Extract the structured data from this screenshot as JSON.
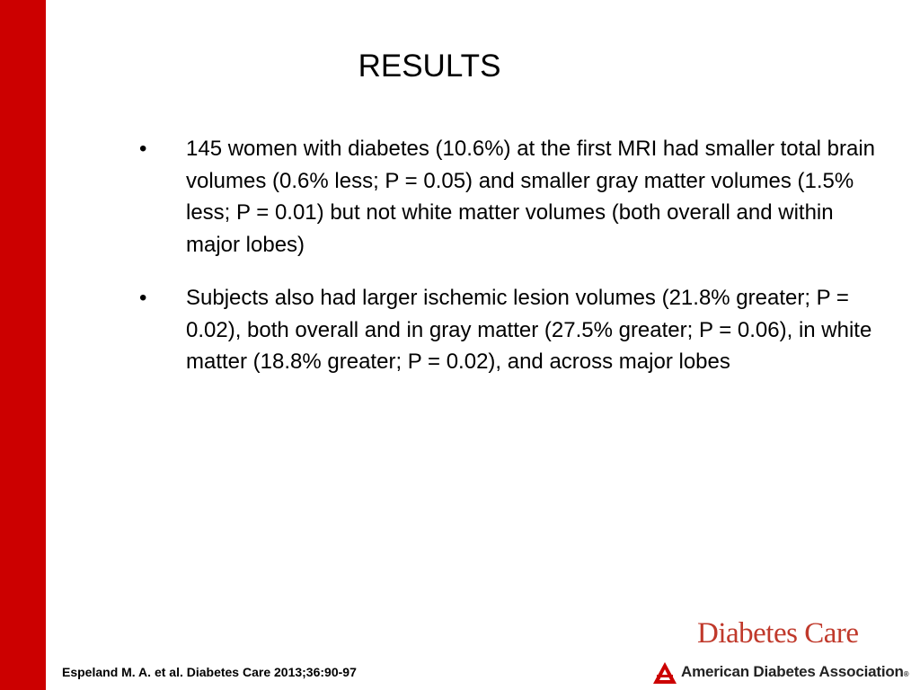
{
  "slide": {
    "title": "RESULTS",
    "accent_color": "#cc0000",
    "bullets": [
      {
        "marker": "•",
        "text": "145 women with diabetes (10.6%) at the first MRI had smaller total brain volumes (0.6% less; P = 0.05) and smaller gray matter volumes (1.5% less; P = 0.01) but not white matter volumes (both overall and within major lobes)"
      },
      {
        "marker": "•",
        "text": "Subjects also had larger ischemic lesion volumes (21.8% greater; P = 0.02), both overall and in gray matter (27.5% greater; P = 0.06), in white matter (18.8% greater; P = 0.02), and across major lobes"
      }
    ],
    "citation": "Espeland M. A. et al. Diabetes Care 2013;36:90-97"
  },
  "branding": {
    "journal": "Diabetes Care",
    "journal_color": "#c0392b",
    "organization": "American Diabetes Association",
    "registered_mark": "®",
    "logo_icon": "ada-triangle-logo-icon"
  }
}
